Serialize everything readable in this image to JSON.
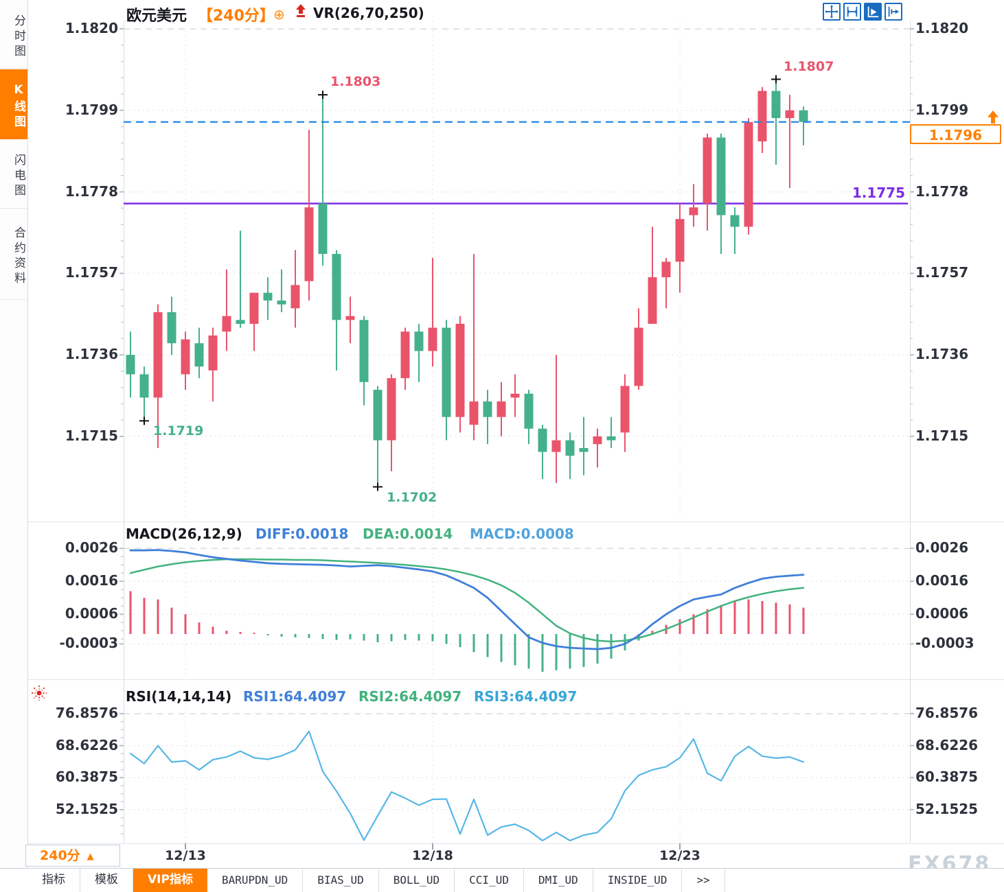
{
  "sidebar": {
    "items": [
      {
        "label": "分时图",
        "active": false
      },
      {
        "label": "K线图",
        "active": true
      },
      {
        "label": "闪电图",
        "active": false
      },
      {
        "label": "合约资料",
        "active": false
      }
    ]
  },
  "header": {
    "symbol": "欧元美元",
    "timeframe": "【240分】",
    "plus": "⊕",
    "indicator": "VR(26,70,250)"
  },
  "toolbar": {
    "buttons": [
      "crosshair-move",
      "axis-scale",
      "pointer-select",
      "exit-right"
    ]
  },
  "macd_header": {
    "title": "MACD(26,12,9)",
    "diff_label": "DIFF:0.0018",
    "dea_label": "DEA:0.0014",
    "macd_label": "MACD:0.0008"
  },
  "rsi_header": {
    "title": "RSI(14,14,14)",
    "rsi1_label": "RSI1:64.4097",
    "rsi2_label": "RSI2:64.4097",
    "rsi3_label": "RSI3:64.4097"
  },
  "timeframe_chip": {
    "label": "240分",
    "arrow": "▲"
  },
  "tabs": {
    "items": [
      {
        "label": "指标",
        "active": false,
        "mono": false
      },
      {
        "label": "模板",
        "active": false,
        "mono": false
      },
      {
        "label": "VIP指标",
        "active": true,
        "mono": false
      },
      {
        "label": "BARUPDN_UD",
        "active": false,
        "mono": true
      },
      {
        "label": "BIAS_UD",
        "active": false,
        "mono": true
      },
      {
        "label": "BOLL_UD",
        "active": false,
        "mono": true
      },
      {
        "label": "CCI_UD",
        "active": false,
        "mono": true
      },
      {
        "label": "DMI_UD",
        "active": false,
        "mono": true
      },
      {
        "label": "INSIDE_UD",
        "active": false,
        "mono": true
      },
      {
        "label": ">>",
        "active": false,
        "mono": true
      }
    ]
  },
  "watermark": "FX678",
  "chart_data": [
    {
      "type": "candlestick",
      "title": "欧元美元 240分 K线图",
      "colors": {
        "up": "#e9546b",
        "down": "#45b08c"
      },
      "y_ticks": [
        1.182,
        1.1799,
        1.1778,
        1.1757,
        1.1736,
        1.1715
      ],
      "y_tick_labels": [
        "1.1820",
        "1.1799",
        "1.1778",
        "1.1757",
        "1.1736",
        "1.1715"
      ],
      "x_labels": [
        {
          "text": "12/13",
          "index": 4
        },
        {
          "text": "12/18",
          "index": 22
        },
        {
          "text": "12/23",
          "index": 40
        }
      ],
      "markers": [
        {
          "type": "low",
          "index": 1,
          "price": 1.1719,
          "label": "1.1719"
        },
        {
          "type": "high",
          "index": 14,
          "price": 1.1803,
          "label": "1.1803"
        },
        {
          "type": "low",
          "index": 18,
          "price": 1.1702,
          "label": "1.1702"
        },
        {
          "type": "high",
          "index": 47,
          "price": 1.1807,
          "label": "1.1807"
        }
      ],
      "current_price": 1.1796,
      "current_price_label": "1.1796",
      "current_price_line_color": "#2188e8",
      "support_price": 1.1775,
      "support_label": "1.1775",
      "support_line_color": "#7d2ae8",
      "ohlc": [
        [
          1.1736,
          1.1742,
          1.1725,
          1.1731
        ],
        [
          1.1731,
          1.1733,
          1.1719,
          1.1725
        ],
        [
          1.1725,
          1.1749,
          1.1712,
          1.1747
        ],
        [
          1.1747,
          1.1751,
          1.1736,
          1.1739
        ],
        [
          1.1731,
          1.1742,
          1.1727,
          1.174
        ],
        [
          1.1739,
          1.1743,
          1.173,
          1.1733
        ],
        [
          1.1732,
          1.1743,
          1.1724,
          1.1741
        ],
        [
          1.1742,
          1.1758,
          1.1737,
          1.1746
        ],
        [
          1.1745,
          1.1768,
          1.1743,
          1.1744
        ],
        [
          1.1744,
          1.1752,
          1.1737,
          1.1752
        ],
        [
          1.1752,
          1.1756,
          1.1745,
          1.175
        ],
        [
          1.175,
          1.1758,
          1.1747,
          1.1749
        ],
        [
          1.1748,
          1.1763,
          1.1743,
          1.1754
        ],
        [
          1.1755,
          1.1794,
          1.175,
          1.1774
        ],
        [
          1.1775,
          1.1803,
          1.1759,
          1.1762
        ],
        [
          1.1762,
          1.1763,
          1.1732,
          1.1745
        ],
        [
          1.1745,
          1.1751,
          1.1739,
          1.1746
        ],
        [
          1.1745,
          1.1746,
          1.1723,
          1.1729
        ],
        [
          1.1727,
          1.1728,
          1.1702,
          1.1714
        ],
        [
          1.1714,
          1.1731,
          1.1706,
          1.173
        ],
        [
          1.173,
          1.1743,
          1.1727,
          1.1742
        ],
        [
          1.1742,
          1.1744,
          1.1729,
          1.1737
        ],
        [
          1.1737,
          1.1761,
          1.1733,
          1.1743
        ],
        [
          1.1743,
          1.1745,
          1.1714,
          1.172
        ],
        [
          1.172,
          1.1746,
          1.1716,
          1.1744
        ],
        [
          1.1718,
          1.1762,
          1.1714,
          1.1724
        ],
        [
          1.1724,
          1.1727,
          1.1713,
          1.172
        ],
        [
          1.172,
          1.1729,
          1.1715,
          1.1724
        ],
        [
          1.1725,
          1.1731,
          1.172,
          1.1726
        ],
        [
          1.1726,
          1.1727,
          1.1713,
          1.1717
        ],
        [
          1.1717,
          1.1718,
          1.1704,
          1.1711
        ],
        [
          1.1711,
          1.1736,
          1.1703,
          1.1714
        ],
        [
          1.1714,
          1.1716,
          1.1704,
          1.171
        ],
        [
          1.1712,
          1.172,
          1.1705,
          1.1711
        ],
        [
          1.1713,
          1.1717,
          1.1707,
          1.1715
        ],
        [
          1.1715,
          1.172,
          1.1712,
          1.1714
        ],
        [
          1.1716,
          1.1731,
          1.1711,
          1.1728
        ],
        [
          1.1728,
          1.1748,
          1.1727,
          1.1743
        ],
        [
          1.1744,
          1.1769,
          1.1744,
          1.1756
        ],
        [
          1.1756,
          1.1761,
          1.1748,
          1.176
        ],
        [
          1.176,
          1.1775,
          1.1752,
          1.1771
        ],
        [
          1.1772,
          1.178,
          1.1769,
          1.1774
        ],
        [
          1.1775,
          1.1793,
          1.1768,
          1.1792
        ],
        [
          1.1792,
          1.1793,
          1.1762,
          1.1772
        ],
        [
          1.1772,
          1.1774,
          1.1762,
          1.1769
        ],
        [
          1.1769,
          1.1797,
          1.1767,
          1.1796
        ],
        [
          1.1791,
          1.1805,
          1.1788,
          1.1804
        ],
        [
          1.1804,
          1.1807,
          1.1785,
          1.1797
        ],
        [
          1.1797,
          1.1803,
          1.1779,
          1.1799
        ],
        [
          1.1799,
          1.18,
          1.179,
          1.1796
        ]
      ]
    },
    {
      "type": "macd",
      "values": {
        "diff": 0.0018,
        "dea": 0.0014,
        "macd": 0.0008
      },
      "colors": {
        "diff": "#3f7fd9",
        "dea": "#42b27e",
        "hist_pos": "#e9546b",
        "hist_neg": "#45b08c"
      },
      "y_ticks": [
        0.0026,
        0.0016,
        0.0006,
        -0.0003
      ],
      "y_tick_labels": [
        "0.0026",
        "0.0016",
        "0.0006",
        "-0.0003"
      ],
      "diff": [
        0.00254,
        0.00254,
        0.00255,
        0.00252,
        0.00248,
        0.0024,
        0.00233,
        0.00228,
        0.00223,
        0.00219,
        0.00215,
        0.00213,
        0.00212,
        0.00211,
        0.0021,
        0.00208,
        0.00205,
        0.00207,
        0.00209,
        0.00206,
        0.00201,
        0.00196,
        0.0019,
        0.00178,
        0.0016,
        0.0014,
        0.0011,
        0.0007,
        0.0003,
        -0.0001,
        -0.00027,
        -0.00037,
        -0.00042,
        -0.00044,
        -0.00046,
        -0.00042,
        -0.0003,
        -5e-05,
        0.0003,
        0.0006,
        0.00085,
        0.00105,
        0.00113,
        0.0012,
        0.0014,
        0.00155,
        0.00168,
        0.00174,
        0.00177,
        0.0018
      ],
      "dea": [
        0.00185,
        0.00195,
        0.00205,
        0.00212,
        0.00218,
        0.00222,
        0.00225,
        0.00227,
        0.00227,
        0.00227,
        0.00226,
        0.00226,
        0.00225,
        0.00225,
        0.00224,
        0.00222,
        0.0022,
        0.00218,
        0.00216,
        0.00213,
        0.0021,
        0.00206,
        0.00202,
        0.00196,
        0.00188,
        0.00178,
        0.00165,
        0.00148,
        0.00125,
        0.00095,
        0.0006,
        0.00025,
        2e-05,
        -0.00012,
        -0.0002,
        -0.00023,
        -0.0002,
        -0.00012,
        0,
        0.00015,
        0.00032,
        0.0005,
        0.00068,
        0.00085,
        0.001,
        0.00112,
        0.00122,
        0.0013,
        0.00136,
        0.0014
      ],
      "hist": [
        0.0013,
        0.0011,
        0.00105,
        0.0008,
        0.0006,
        0.00035,
        0.00022,
        0.0001,
        6e-05,
        4e-05,
        -4e-05,
        -8e-05,
        -0.0001,
        -0.00012,
        -0.00015,
        -0.00018,
        -0.00016,
        -0.0002,
        -0.00025,
        -0.00022,
        -0.00018,
        -0.0002,
        -0.00022,
        -0.0003,
        -0.0004,
        -0.00055,
        -0.0007,
        -0.00085,
        -0.00095,
        -0.00105,
        -0.00115,
        -0.0011,
        -0.00105,
        -0.001,
        -0.0009,
        -0.00075,
        -0.0005,
        -0.0002,
        0.0001,
        0.00028,
        0.00045,
        0.0006,
        0.00075,
        0.00088,
        0.00098,
        0.00105,
        0.001,
        0.00095,
        0.0009,
        0.0008
      ]
    },
    {
      "type": "line",
      "name": "RSI",
      "color": "#56b7e6",
      "current": {
        "rsi1": 64.4097,
        "rsi2": 64.4097,
        "rsi3": 64.4097
      },
      "y_ticks": [
        76.8576,
        68.6226,
        60.3875,
        52.1525
      ],
      "y_tick_labels": [
        "76.8576",
        "68.6226",
        "60.3875",
        "52.1525"
      ],
      "values": [
        66.6,
        64.0,
        68.6,
        64.4,
        64.7,
        62.4,
        65.0,
        65.7,
        67.2,
        65.5,
        65.1,
        66.0,
        67.5,
        72.3,
        62.0,
        56.9,
        51.2,
        44.3,
        50.6,
        56.7,
        55.1,
        53.3,
        54.8,
        54.9,
        45.9,
        54.8,
        45.6,
        47.7,
        48.4,
        46.8,
        44.2,
        46.3,
        44.2,
        45.6,
        46.3,
        49.8,
        57.0,
        61.0,
        62.4,
        63.2,
        65.5,
        70.3,
        61.5,
        59.6,
        65.9,
        68.4,
        65.9,
        65.4,
        65.7,
        64.4
      ]
    }
  ]
}
